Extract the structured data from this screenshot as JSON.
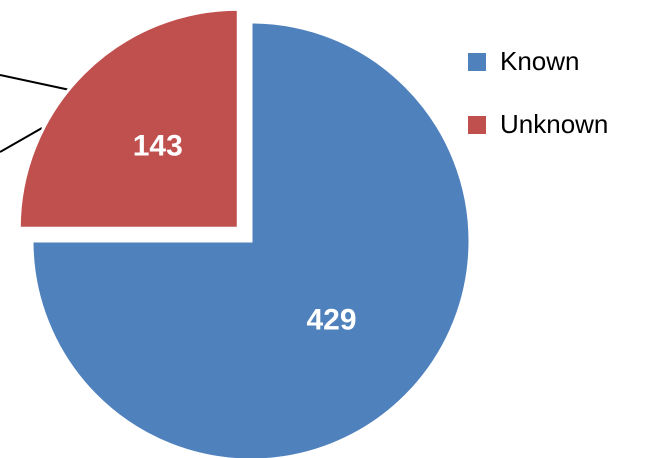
{
  "chart_data": {
    "type": "pie",
    "categories": [
      "Known",
      "Unknown"
    ],
    "values": [
      429,
      143
    ],
    "colors": [
      "#4f81bd",
      "#c0504d"
    ],
    "legend": "right"
  }
}
